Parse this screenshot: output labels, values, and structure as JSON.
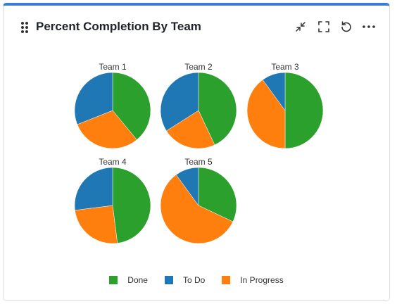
{
  "widget": {
    "title": "Percent Completion By Team",
    "accent_color": "#3a7bd5",
    "icons": {
      "drag": "drag-handle-icon",
      "collapse": "collapse-icon",
      "fullscreen": "fullscreen-icon",
      "refresh": "refresh-icon",
      "more": "more-options-icon"
    }
  },
  "chart_data": {
    "type": "pie",
    "series_order": [
      "Done",
      "To Do",
      "In Progress"
    ],
    "colors": {
      "Done": "#2ca02c",
      "To Do": "#1f77b4",
      "In Progress": "#ff7f0e"
    },
    "legend_position": "bottom",
    "pies": [
      {
        "title": "Team 1",
        "values": {
          "Done": 39,
          "In Progress": 30,
          "To Do": 31
        }
      },
      {
        "title": "Team 2",
        "values": {
          "Done": 43,
          "In Progress": 23,
          "To Do": 34
        }
      },
      {
        "title": "Team 3",
        "values": {
          "Done": 50,
          "To Do": 10,
          "In Progress": 40
        }
      },
      {
        "title": "Team 4",
        "values": {
          "Done": 48,
          "In Progress": 25,
          "To Do": 27
        }
      },
      {
        "title": "Team 5",
        "values": {
          "Done": 32,
          "To Do": 10,
          "In Progress": 58
        }
      }
    ],
    "pie_slice_order": [
      "Done",
      "In Progress",
      "To Do"
    ]
  }
}
